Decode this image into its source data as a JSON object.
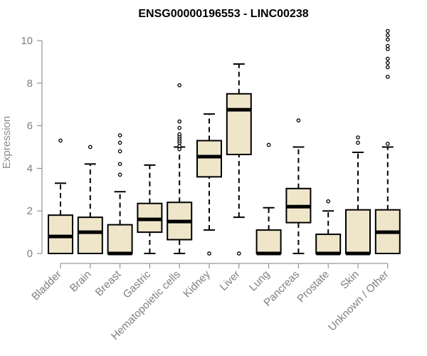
{
  "chart_data": {
    "type": "box",
    "title": "ENSG00000196553 - LINC00238",
    "xlabel": "",
    "ylabel": "Expression",
    "ylim": [
      0,
      10.5
    ],
    "yticks": [
      0,
      2,
      4,
      6,
      8,
      10
    ],
    "grid": false,
    "box_fill": "#efe6ca",
    "axis_color": "#7f7f7f",
    "categories": [
      "Bladder",
      "Brain",
      "Breast",
      "Gastric",
      "Hematopoietic cells",
      "Kidney",
      "Liver",
      "Lung",
      "Pancreas",
      "Prostate",
      "Skin",
      "Unknown / Other"
    ],
    "series": [
      {
        "category": "Bladder",
        "whisker_low": 0,
        "q1": 0,
        "median": 0.8,
        "q3": 1.8,
        "whisker_high": 3.3,
        "outliers": [
          5.3
        ]
      },
      {
        "category": "Brain",
        "whisker_low": 0,
        "q1": 0,
        "median": 1.0,
        "q3": 1.7,
        "whisker_high": 4.2,
        "outliers": [
          5.0
        ]
      },
      {
        "category": "Breast",
        "whisker_low": 0,
        "q1": 0,
        "median": 0.0,
        "q3": 1.35,
        "whisker_high": 2.9,
        "outliers": [
          3.7,
          4.2,
          4.8,
          5.2,
          5.55
        ]
      },
      {
        "category": "Gastric",
        "whisker_low": 0,
        "q1": 1.0,
        "median": 1.6,
        "q3": 2.35,
        "whisker_high": 4.15,
        "outliers": []
      },
      {
        "category": "Hematopoietic cells",
        "whisker_low": 0,
        "q1": 0.65,
        "median": 1.5,
        "q3": 2.4,
        "whisker_high": 5.0,
        "outliers": [
          4.9,
          5.05,
          5.2,
          5.3,
          5.4,
          5.5,
          5.6,
          5.9,
          6.2,
          7.9
        ]
      },
      {
        "category": "Kidney",
        "whisker_low": 1.1,
        "q1": 3.6,
        "median": 4.55,
        "q3": 5.3,
        "whisker_high": 6.55,
        "outliers": [
          0
        ]
      },
      {
        "category": "Liver",
        "whisker_low": 1.7,
        "q1": 4.65,
        "median": 6.75,
        "q3": 7.5,
        "whisker_high": 8.9,
        "outliers": [
          0
        ]
      },
      {
        "category": "Lung",
        "whisker_low": 0,
        "q1": 0,
        "median": 0.0,
        "q3": 1.1,
        "whisker_high": 2.15,
        "outliers": [
          5.1
        ]
      },
      {
        "category": "Pancreas",
        "whisker_low": 0,
        "q1": 1.45,
        "median": 2.2,
        "q3": 3.05,
        "whisker_high": 5.0,
        "outliers": [
          6.25
        ]
      },
      {
        "category": "Prostate",
        "whisker_low": 0,
        "q1": 0,
        "median": 0.0,
        "q3": 0.9,
        "whisker_high": 2.0,
        "outliers": [
          2.45
        ]
      },
      {
        "category": "Skin",
        "whisker_low": 0,
        "q1": 0,
        "median": 0.0,
        "q3": 2.05,
        "whisker_high": 4.75,
        "outliers": [
          5.2,
          5.45
        ]
      },
      {
        "category": "Unknown / Other",
        "whisker_low": 0,
        "q1": 0,
        "median": 1.0,
        "q3": 2.05,
        "whisker_high": 5.0,
        "outliers": [
          5.15,
          8.3,
          8.75,
          8.95,
          9.15,
          9.6,
          9.75,
          10.05,
          10.25,
          10.45
        ]
      }
    ]
  }
}
